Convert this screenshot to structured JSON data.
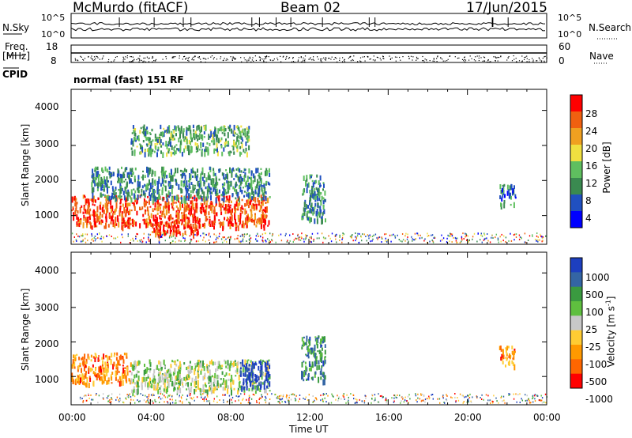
{
  "header": {
    "station": "McMurdo (fitACF)",
    "beam": "Beam 02",
    "date": "17/Jun/2015"
  },
  "param_panel": {
    "nsky_label": "N.Sky",
    "nsearch_label": "N.Search",
    "noise_ticks_left": [
      "10^5",
      "10^0"
    ],
    "noise_ticks_right": [
      "10^5",
      "10^0"
    ],
    "freq_label_top": "Freq.",
    "freq_label_unit": "[MHz]",
    "freq_ticks": [
      "18",
      "8"
    ],
    "nave_label": "Nave",
    "nave_ticks": [
      "60",
      "0"
    ],
    "cpid_label": "CPID",
    "cpid_value": "normal (fast) 151 RF"
  },
  "axes": {
    "y_label": "Slant Range [km]",
    "x_label": "Time UT",
    "y_ticks": [
      "1000",
      "2000",
      "3000",
      "4000"
    ],
    "x_ticks": [
      "00:00",
      "04:00",
      "08:00",
      "12:00",
      "16:00",
      "20:00",
      "00:00"
    ]
  },
  "colorbars": {
    "power": {
      "label": "Power [dB]",
      "ticks": [
        "4",
        "8",
        "12",
        "16",
        "20",
        "24",
        "28"
      ],
      "colors": [
        "#0000ff",
        "#2050c0",
        "#3a8a50",
        "#5fbf5f",
        "#f0e040",
        "#f0a020",
        "#f06010",
        "#ff0000"
      ]
    },
    "velocity": {
      "label_main": "Velocity [m s",
      "label_sup": "-1",
      "label_end": "]",
      "ticks": [
        "1000",
        "500",
        "100",
        "25",
        "-25",
        "-100",
        "-500",
        "-1000"
      ],
      "colors": [
        "#1d3fbf",
        "#3465a4",
        "#3a9a40",
        "#5fbf3f",
        "#c8c8c8",
        "#ffcc33",
        "#ff9900",
        "#ff6600",
        "#ff0000"
      ]
    }
  },
  "chart_data": [
    {
      "type": "heatmap",
      "title": "Power",
      "xlabel": "Time UT",
      "ylabel": "Slant Range [km]",
      "xlim": [
        0,
        24
      ],
      "ylim": [
        180,
        4600
      ],
      "colorbar_label": "Power [dB]",
      "colorbar_range": [
        0,
        32
      ],
      "regions": [
        {
          "t0": 0.0,
          "t1": 10.0,
          "r0": 700,
          "r1": 1600,
          "value": 27
        },
        {
          "t0": 4.0,
          "t1": 6.5,
          "r0": 500,
          "r1": 900,
          "value": 29
        },
        {
          "t0": 1.0,
          "t1": 10.0,
          "r0": 1500,
          "r1": 2400,
          "value": 10
        },
        {
          "t0": 3.0,
          "t1": 9.0,
          "r0": 2800,
          "r1": 3600,
          "value": 12
        },
        {
          "t0": 11.6,
          "t1": 12.8,
          "r0": 900,
          "r1": 2200,
          "value": 10
        },
        {
          "t0": 21.6,
          "t1": 22.4,
          "r0": 1300,
          "r1": 1900,
          "value": 8
        }
      ]
    },
    {
      "type": "heatmap",
      "title": "Velocity",
      "xlabel": "Time UT",
      "ylabel": "Slant Range [km]",
      "xlim": [
        0,
        24
      ],
      "ylim": [
        180,
        4600
      ],
      "colorbar_label": "Velocity [m s-1]",
      "colorbar_range": [
        -1000,
        1000
      ],
      "regions": [
        {
          "t0": 0.0,
          "t1": 3.0,
          "r0": 800,
          "r1": 1700,
          "value": -500
        },
        {
          "t0": 3.0,
          "t1": 10.0,
          "r0": 600,
          "r1": 1500,
          "value": 100
        },
        {
          "t0": 8.5,
          "t1": 10.0,
          "r0": 700,
          "r1": 1500,
          "value": 1000
        },
        {
          "t0": 11.6,
          "t1": 12.8,
          "r0": 900,
          "r1": 2200,
          "value": 500
        },
        {
          "t0": 21.6,
          "t1": 22.4,
          "r0": 1300,
          "r1": 1900,
          "value": -500
        }
      ]
    }
  ]
}
